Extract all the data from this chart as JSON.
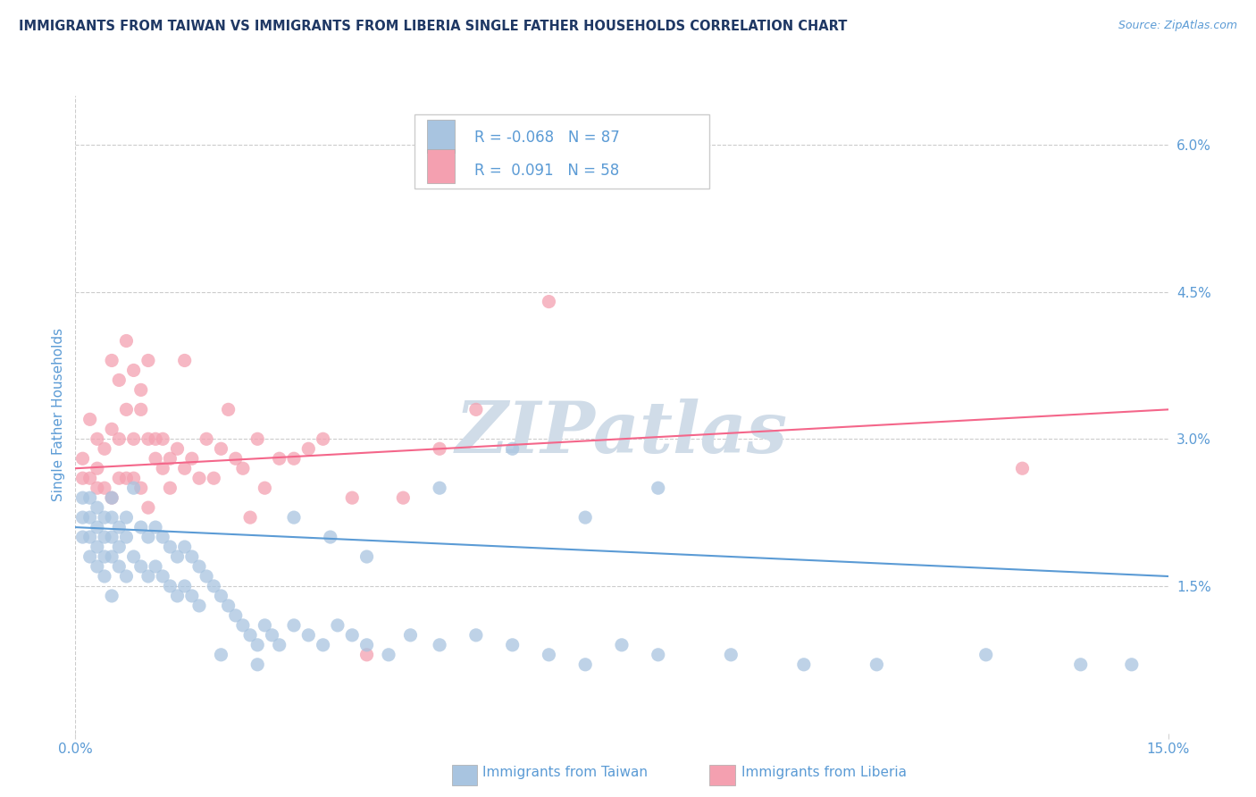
{
  "title": "IMMIGRANTS FROM TAIWAN VS IMMIGRANTS FROM LIBERIA SINGLE FATHER HOUSEHOLDS CORRELATION CHART",
  "source": "Source: ZipAtlas.com",
  "ylabel_left": "Single Father Households",
  "taiwan_R": -0.068,
  "taiwan_N": 87,
  "liberia_R": 0.091,
  "liberia_N": 58,
  "x_min": 0.0,
  "x_max": 0.15,
  "y_min": 0.0,
  "y_max": 0.065,
  "x_ticks": [
    0.0,
    0.15
  ],
  "x_tick_labels": [
    "0.0%",
    "15.0%"
  ],
  "y_ticks_right": [
    0.015,
    0.03,
    0.045,
    0.06
  ],
  "y_tick_labels_right": [
    "1.5%",
    "3.0%",
    "4.5%",
    "6.0%"
  ],
  "taiwan_color": "#a8c4e0",
  "liberia_color": "#f4a0b0",
  "taiwan_line_color": "#5b9bd5",
  "liberia_line_color": "#f4668a",
  "watermark_text": "ZIPatlas",
  "watermark_color": "#d0dce8",
  "background_color": "#ffffff",
  "grid_color": "#cccccc",
  "legend_taiwan_label": "Immigrants from Taiwan",
  "legend_liberia_label": "Immigrants from Liberia",
  "title_color": "#1f3864",
  "axis_label_color": "#5b9bd5",
  "taiwan_scatter_x": [
    0.001,
    0.001,
    0.001,
    0.002,
    0.002,
    0.002,
    0.002,
    0.003,
    0.003,
    0.003,
    0.003,
    0.004,
    0.004,
    0.004,
    0.004,
    0.005,
    0.005,
    0.005,
    0.005,
    0.005,
    0.006,
    0.006,
    0.006,
    0.007,
    0.007,
    0.007,
    0.008,
    0.008,
    0.009,
    0.009,
    0.01,
    0.01,
    0.011,
    0.011,
    0.012,
    0.012,
    0.013,
    0.013,
    0.014,
    0.014,
    0.015,
    0.015,
    0.016,
    0.016,
    0.017,
    0.017,
    0.018,
    0.019,
    0.02,
    0.021,
    0.022,
    0.023,
    0.024,
    0.025,
    0.026,
    0.027,
    0.028,
    0.03,
    0.032,
    0.034,
    0.036,
    0.038,
    0.04,
    0.043,
    0.046,
    0.05,
    0.055,
    0.06,
    0.065,
    0.07,
    0.075,
    0.08,
    0.09,
    0.1,
    0.11,
    0.125,
    0.138,
    0.145,
    0.02,
    0.025,
    0.03,
    0.035,
    0.04,
    0.05,
    0.06,
    0.07,
    0.08
  ],
  "taiwan_scatter_y": [
    0.024,
    0.022,
    0.02,
    0.024,
    0.022,
    0.02,
    0.018,
    0.023,
    0.021,
    0.019,
    0.017,
    0.022,
    0.02,
    0.018,
    0.016,
    0.024,
    0.022,
    0.02,
    0.018,
    0.014,
    0.021,
    0.019,
    0.017,
    0.022,
    0.02,
    0.016,
    0.025,
    0.018,
    0.021,
    0.017,
    0.02,
    0.016,
    0.021,
    0.017,
    0.02,
    0.016,
    0.019,
    0.015,
    0.018,
    0.014,
    0.019,
    0.015,
    0.018,
    0.014,
    0.017,
    0.013,
    0.016,
    0.015,
    0.014,
    0.013,
    0.012,
    0.011,
    0.01,
    0.009,
    0.011,
    0.01,
    0.009,
    0.011,
    0.01,
    0.009,
    0.011,
    0.01,
    0.009,
    0.008,
    0.01,
    0.009,
    0.01,
    0.009,
    0.008,
    0.007,
    0.009,
    0.008,
    0.008,
    0.007,
    0.007,
    0.008,
    0.007,
    0.007,
    0.008,
    0.007,
    0.022,
    0.02,
    0.018,
    0.025,
    0.029,
    0.022,
    0.025
  ],
  "liberia_scatter_x": [
    0.001,
    0.001,
    0.002,
    0.002,
    0.003,
    0.003,
    0.003,
    0.004,
    0.004,
    0.005,
    0.005,
    0.006,
    0.006,
    0.007,
    0.007,
    0.008,
    0.008,
    0.009,
    0.009,
    0.01,
    0.01,
    0.011,
    0.011,
    0.012,
    0.012,
    0.013,
    0.013,
    0.014,
    0.015,
    0.016,
    0.017,
    0.018,
    0.019,
    0.02,
    0.021,
    0.022,
    0.023,
    0.024,
    0.025,
    0.026,
    0.028,
    0.03,
    0.032,
    0.034,
    0.038,
    0.04,
    0.045,
    0.05,
    0.055,
    0.065,
    0.005,
    0.006,
    0.007,
    0.008,
    0.009,
    0.01,
    0.015,
    0.13
  ],
  "liberia_scatter_y": [
    0.028,
    0.026,
    0.032,
    0.026,
    0.03,
    0.027,
    0.025,
    0.029,
    0.025,
    0.031,
    0.024,
    0.03,
    0.026,
    0.033,
    0.026,
    0.03,
    0.026,
    0.035,
    0.025,
    0.03,
    0.023,
    0.03,
    0.028,
    0.03,
    0.027,
    0.028,
    0.025,
    0.029,
    0.027,
    0.028,
    0.026,
    0.03,
    0.026,
    0.029,
    0.033,
    0.028,
    0.027,
    0.022,
    0.03,
    0.025,
    0.028,
    0.028,
    0.029,
    0.03,
    0.024,
    0.008,
    0.024,
    0.029,
    0.033,
    0.044,
    0.038,
    0.036,
    0.04,
    0.037,
    0.033,
    0.038,
    0.038,
    0.027
  ],
  "taiwan_line_x": [
    0.0,
    0.15
  ],
  "taiwan_line_y": [
    0.021,
    0.016
  ],
  "liberia_line_x": [
    0.0,
    0.15
  ],
  "liberia_line_y": [
    0.027,
    0.033
  ]
}
